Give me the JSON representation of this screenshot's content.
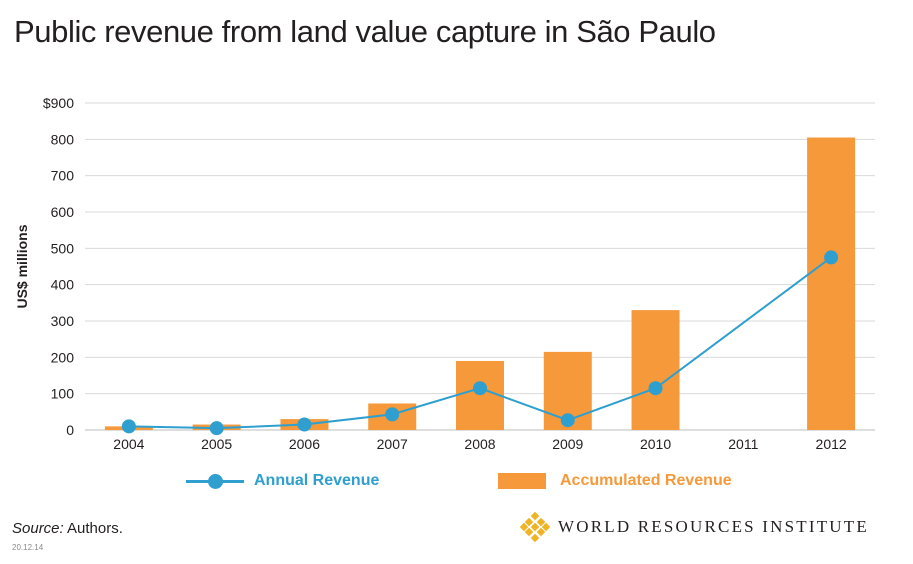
{
  "title": "Public revenue from land value capture in São Paulo",
  "colors": {
    "line": "#2e9fcf",
    "bar": "#f5993a",
    "grid": "#d9d9d9",
    "text": "#231f20"
  },
  "chart_data": {
    "type": "bar+line",
    "title": "Public revenue from land value capture in São Paulo",
    "xlabel": "",
    "ylabel": "US$ millions",
    "ylim": [
      0,
      900
    ],
    "y_ticks": [
      "0",
      "100",
      "200",
      "300",
      "400",
      "500",
      "600",
      "700",
      "800",
      "$900"
    ],
    "y_tick_values": [
      0,
      100,
      200,
      300,
      400,
      500,
      600,
      700,
      800,
      900
    ],
    "categories": [
      "2004",
      "2005",
      "2006",
      "2007",
      "2008",
      "2009",
      "2010",
      "2011",
      "2012"
    ],
    "grid": true,
    "legend_position": "bottom",
    "series": [
      {
        "name": "Accumulated Revenue",
        "type": "bar",
        "values": [
          10,
          15,
          30,
          73,
          190,
          215,
          330,
          null,
          805
        ]
      },
      {
        "name": "Annual Revenue",
        "type": "line",
        "values": [
          10,
          5,
          15,
          43,
          115,
          27,
          115,
          null,
          475
        ]
      }
    ]
  },
  "legend": {
    "annual": "Annual Revenue",
    "accumulated": "Accumulated Revenue"
  },
  "source": {
    "label": "Source:",
    "text": " Authors."
  },
  "date": "20.12.14",
  "logo": {
    "text": "WORLD RESOURCES INSTITUTE"
  }
}
